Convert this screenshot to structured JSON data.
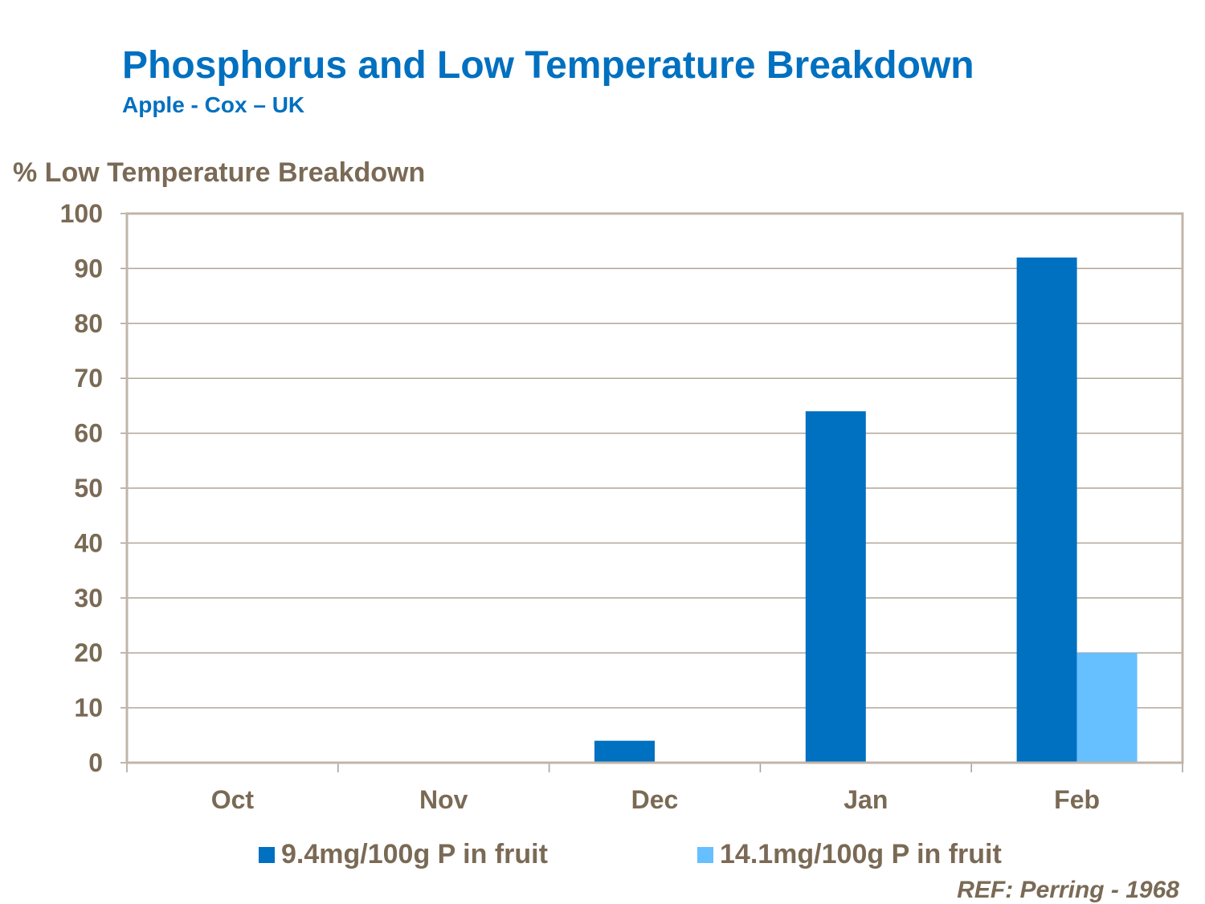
{
  "chart_data": {
    "type": "bar",
    "title": "Phosphorus and Low Temperature Breakdown",
    "subtitle": "Apple - Cox – UK",
    "ylabel": "% Low Temperature Breakdown",
    "xlabel": "",
    "categories": [
      "Oct",
      "Nov",
      "Dec",
      "Jan",
      "Feb"
    ],
    "series": [
      {
        "name": "9.4mg/100g P in fruit",
        "values": [
          0,
          0,
          4,
          64,
          92
        ],
        "color": "#0070C0"
      },
      {
        "name": "14.1mg/100g P in fruit",
        "values": [
          0,
          0,
          0,
          0,
          20
        ],
        "color": "#66BFFF"
      }
    ],
    "ylim": [
      0,
      100
    ],
    "yticks": [
      0,
      10,
      20,
      30,
      40,
      50,
      60,
      70,
      80,
      90,
      100
    ],
    "grid": true,
    "legend": "bottom",
    "annotation": "REF: Perring - 1968"
  }
}
